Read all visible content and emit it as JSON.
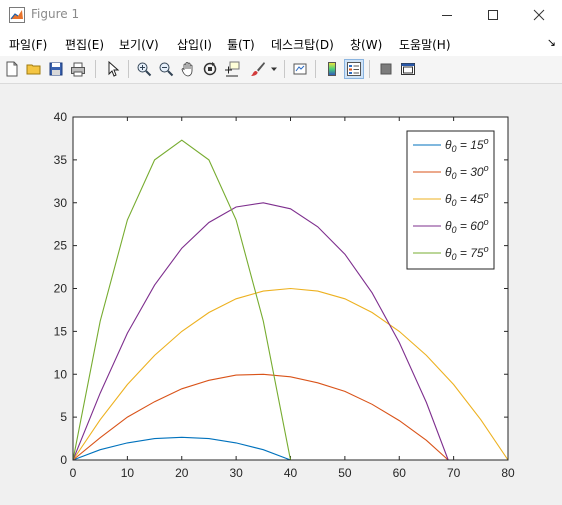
{
  "window": {
    "title": "Figure 1"
  },
  "menu": [
    "파일(F)",
    "편집(E)",
    "보기(V)",
    "삽입(I)",
    "툴(T)",
    "데스크탑(D)",
    "창(W)",
    "도움말(H)"
  ],
  "chart_data": {
    "type": "line",
    "title": "",
    "xlabel": "",
    "ylabel": "",
    "xlim": [
      0,
      80
    ],
    "ylim": [
      0,
      40
    ],
    "xticks": [
      "0",
      "10",
      "20",
      "30",
      "40",
      "50",
      "60",
      "70",
      "80"
    ],
    "yticks": [
      "0",
      "5",
      "10",
      "15",
      "20",
      "25",
      "30",
      "35",
      "40"
    ],
    "grid": false,
    "legend_position": "top-right",
    "series": [
      {
        "name": "θ0 = 15°",
        "color": "#0072bd",
        "x": [
          0,
          5,
          10,
          15,
          20,
          25,
          30,
          35,
          40
        ],
        "y": [
          0,
          1.2,
          2.0,
          2.5,
          2.65,
          2.5,
          2.0,
          1.2,
          0
        ]
      },
      {
        "name": "θ0 = 30°",
        "color": "#d95319",
        "x": [
          0,
          5,
          10,
          15,
          20,
          25,
          30,
          35,
          40,
          45,
          50,
          55,
          60,
          65,
          69
        ],
        "y": [
          0,
          2.6,
          5.0,
          6.8,
          8.3,
          9.3,
          9.9,
          10.0,
          9.7,
          9.0,
          8.0,
          6.5,
          4.6,
          2.3,
          0
        ]
      },
      {
        "name": "θ0 = 45°",
        "color": "#edb120",
        "x": [
          0,
          5,
          10,
          15,
          20,
          25,
          30,
          35,
          40,
          45,
          50,
          55,
          60,
          65,
          70,
          75,
          80
        ],
        "y": [
          0,
          4.7,
          8.8,
          12.2,
          15.0,
          17.2,
          18.8,
          19.7,
          20.0,
          19.7,
          18.8,
          17.2,
          15.0,
          12.2,
          8.8,
          4.7,
          0
        ]
      },
      {
        "name": "θ0 = 60°",
        "color": "#7e2f8e",
        "x": [
          0,
          5,
          10,
          15,
          20,
          25,
          30,
          35,
          40,
          45,
          50,
          55,
          60,
          65,
          69
        ],
        "y": [
          0,
          7.8,
          14.8,
          20.4,
          24.7,
          27.7,
          29.5,
          30.0,
          29.3,
          27.2,
          24.0,
          19.5,
          13.7,
          6.7,
          0
        ]
      },
      {
        "name": "θ0 = 75°",
        "color": "#77ac30",
        "x": [
          0,
          5,
          10,
          15,
          20,
          25,
          30,
          35,
          40
        ],
        "y": [
          0,
          16.2,
          28.0,
          35.0,
          37.3,
          35.0,
          28.0,
          16.2,
          0
        ]
      }
    ]
  }
}
